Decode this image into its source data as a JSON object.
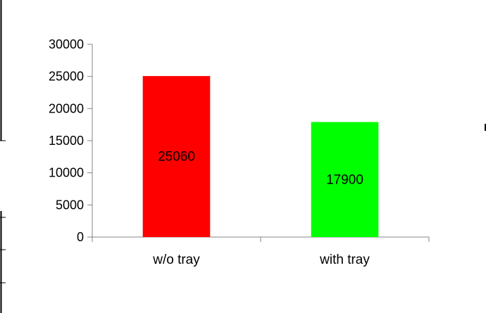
{
  "chart_data": {
    "type": "bar",
    "categories": [
      "w/o tray",
      "with tray"
    ],
    "values": [
      25060,
      17900
    ],
    "data_labels": [
      "25060",
      "17900"
    ],
    "colors": [
      "#ff0000",
      "#00ff00"
    ],
    "title": "",
    "xlabel": "",
    "ylabel": "",
    "ylim": [
      0,
      30000
    ],
    "yticks": [
      "0",
      "5000",
      "10000",
      "15000",
      "20000",
      "25000",
      "30000"
    ],
    "grid": false,
    "legend": "none"
  }
}
